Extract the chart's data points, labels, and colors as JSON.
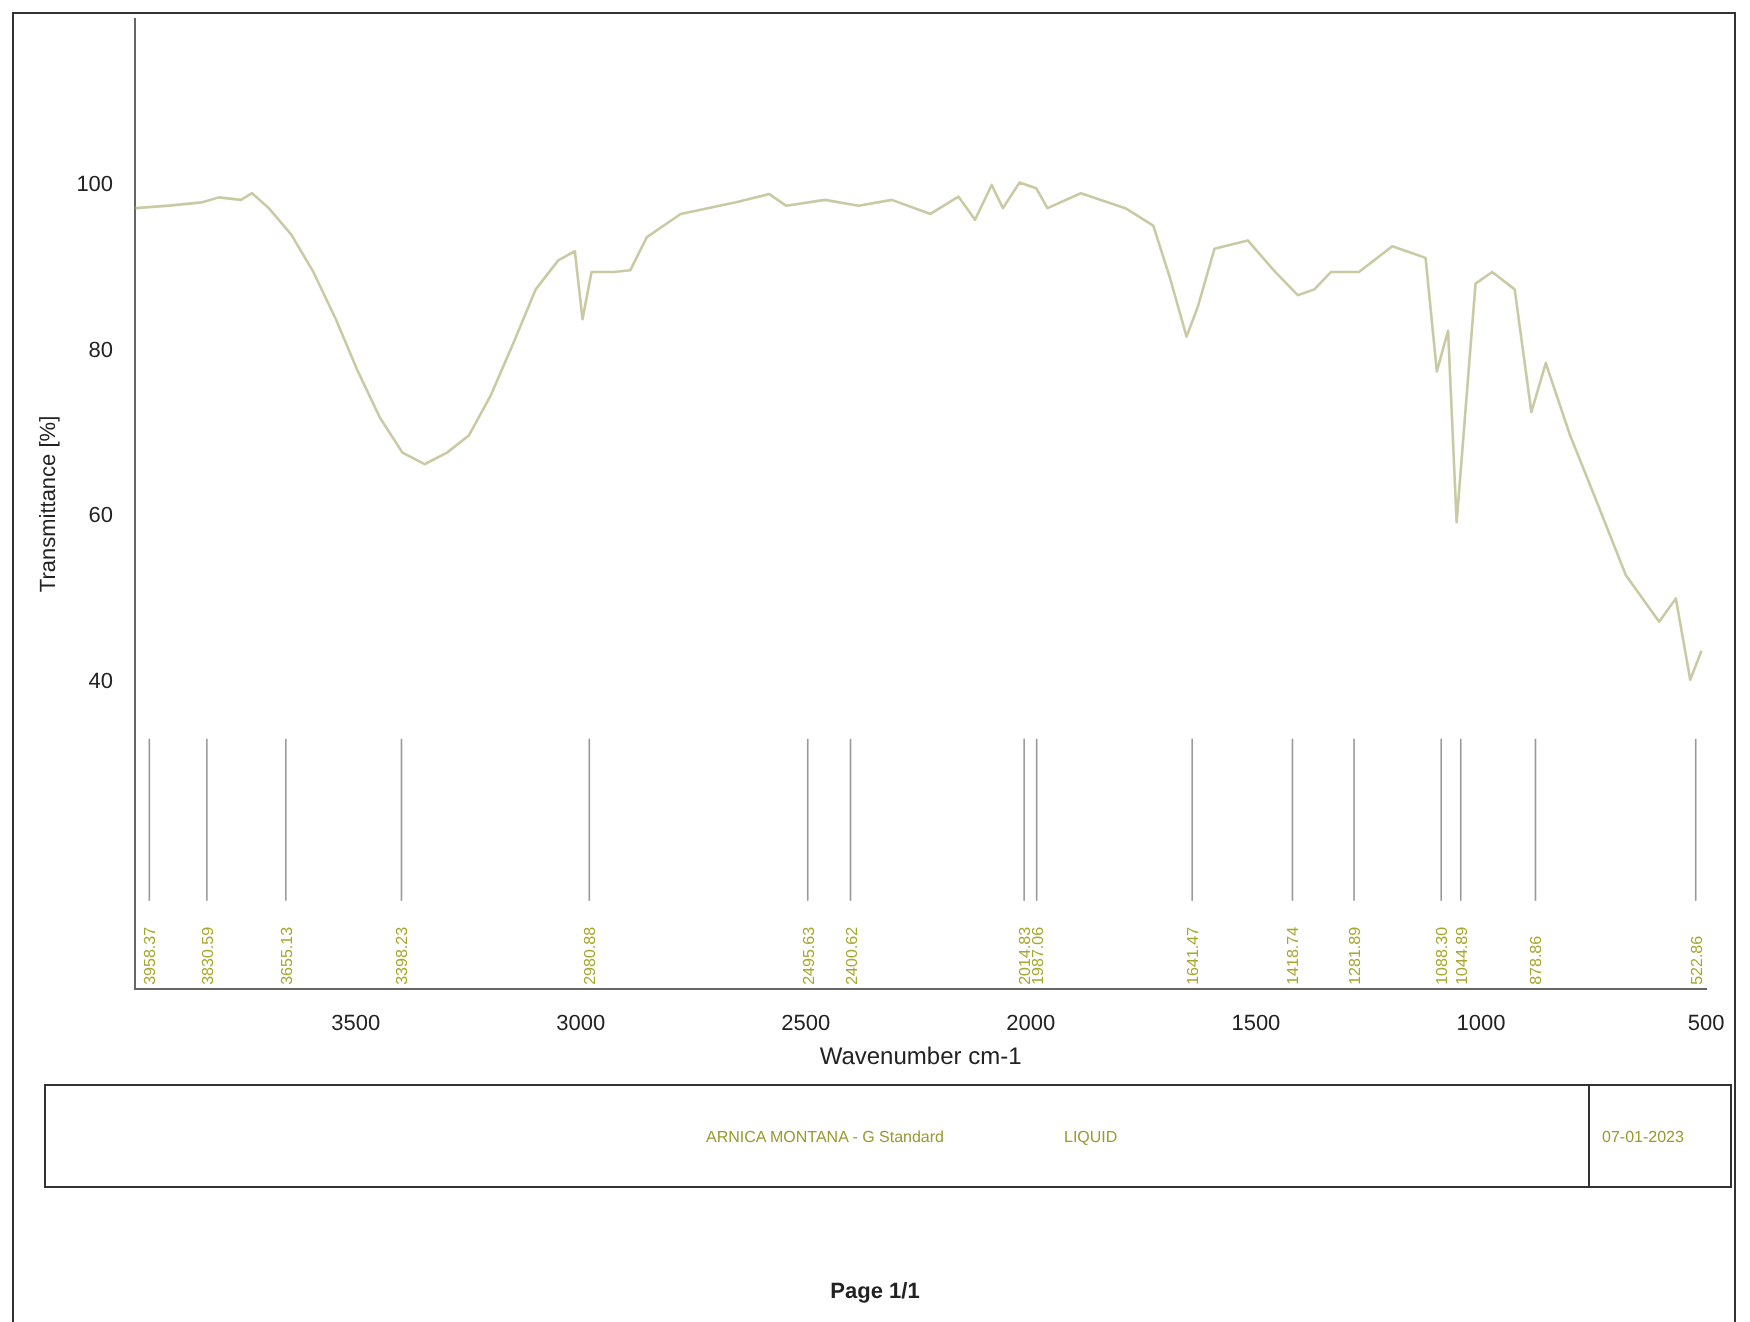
{
  "chart_data": {
    "type": "line",
    "xlabel": "Wavenumber cm-1",
    "ylabel": "Transmittance [%]",
    "x": [
      3989,
      3915,
      3841,
      3804,
      3755,
      3730,
      3693,
      3643,
      3594,
      3544,
      3495,
      3446,
      3396,
      3347,
      3297,
      3248,
      3199,
      3149,
      3100,
      3050,
      3013,
      2996,
      2976,
      2927,
      2890,
      2853,
      2778,
      2655,
      2581,
      2544,
      2457,
      2383,
      2309,
      2223,
      2161,
      2124,
      2087,
      2062,
      2025,
      1988,
      1963,
      1889,
      1790,
      1728,
      1691,
      1654,
      1629,
      1592,
      1518,
      1457,
      1407,
      1370,
      1333,
      1271,
      1197,
      1123,
      1098,
      1073,
      1054,
      1012,
      975,
      925,
      888,
      856,
      802,
      740,
      678,
      604,
      567,
      535,
      510
    ],
    "series": [
      {
        "color": "#c9c9a3",
        "values": [
          97.2,
          97.5,
          97.9,
          98.5,
          98.2,
          99,
          97.2,
          94,
          89.5,
          83.8,
          77.5,
          71.9,
          67.7,
          66.3,
          67.7,
          69.8,
          74.7,
          81,
          87.4,
          90.9,
          92,
          83.8,
          89.5,
          89.5,
          89.7,
          93.7,
          96.5,
          97.9,
          98.9,
          97.5,
          98.2,
          97.5,
          98.2,
          96.5,
          98.6,
          95.8,
          100,
          97.2,
          100.3,
          99.6,
          97.2,
          99,
          97.2,
          95.1,
          88.8,
          81.7,
          85.3,
          92.3,
          93.3,
          89.5,
          86.7,
          87.4,
          89.5,
          89.5,
          92.6,
          91.2,
          77.5,
          82.4,
          59.3,
          88.1,
          89.5,
          87.4,
          72.6,
          78.5,
          69.8,
          61.4,
          52.9,
          47.3,
          50.1,
          40.3,
          43.8
        ]
      }
    ],
    "xlim": [
      3990,
      500
    ],
    "xticks": [
      3500,
      3000,
      2500,
      2000,
      1500,
      1000,
      500
    ],
    "ylim": [
      3,
      120
    ],
    "yticks": [
      40,
      60,
      80,
      100
    ],
    "grid": false,
    "legend": false,
    "marker": "none",
    "line_style": "solid",
    "ref_lines": [
      {
        "axis": "x",
        "value": 3958.37,
        "label": "3958.37",
        "color": "#999999"
      },
      {
        "axis": "x",
        "value": 3830.59,
        "label": "3830.59",
        "color": "#999999"
      },
      {
        "axis": "x",
        "value": 3655.13,
        "label": "3655.13",
        "color": "#999999"
      },
      {
        "axis": "x",
        "value": 3398.23,
        "label": "3398.23",
        "color": "#999999"
      },
      {
        "axis": "x",
        "value": 2980.88,
        "label": "2980.88",
        "color": "#999999"
      },
      {
        "axis": "x",
        "value": 2495.63,
        "label": "2495.63",
        "color": "#999999"
      },
      {
        "axis": "x",
        "value": 2400.62,
        "label": "2400.62",
        "color": "#999999"
      },
      {
        "axis": "x",
        "value": 2014.83,
        "label": "2014.83",
        "color": "#999999"
      },
      {
        "axis": "x",
        "value": 1987.06,
        "label": "1987.06",
        "color": "#999999"
      },
      {
        "axis": "x",
        "value": 1641.47,
        "label": "1641.47",
        "color": "#999999"
      },
      {
        "axis": "x",
        "value": 1418.74,
        "label": "1418.74",
        "color": "#999999"
      },
      {
        "axis": "x",
        "value": 1281.89,
        "label": "1281.89",
        "color": "#999999"
      },
      {
        "axis": "x",
        "value": 1088.3,
        "label": "1088.30",
        "color": "#999999"
      },
      {
        "axis": "x",
        "value": 1044.89,
        "label": "1044.89",
        "color": "#999999"
      },
      {
        "axis": "x",
        "value": 878.86,
        "label": "878.86",
        "color": "#999999"
      },
      {
        "axis": "x",
        "value": 522.86,
        "label": "522.86",
        "color": "#999999"
      }
    ],
    "annotations": [
      "ARNICA MONTANA - G Standard",
      "LIQUID",
      "07-01-2023",
      "Page 1/1"
    ]
  }
}
